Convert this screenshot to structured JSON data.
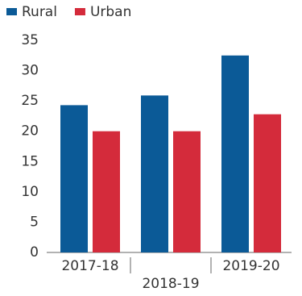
{
  "chart_data": {
    "type": "bar",
    "categories": [
      "2017-18",
      "2018-19",
      "2019-20"
    ],
    "series": [
      {
        "name": "Rural",
        "color": "#0b5a97",
        "values": [
          24.3,
          25.9,
          32.5
        ]
      },
      {
        "name": "Urban",
        "color": "#d42b3b",
        "values": [
          20.0,
          20.0,
          22.8
        ]
      }
    ],
    "ylim": [
      0,
      35
    ],
    "yticks": [
      0,
      5,
      10,
      15,
      20,
      25,
      30,
      35
    ],
    "legend": "top-left"
  }
}
